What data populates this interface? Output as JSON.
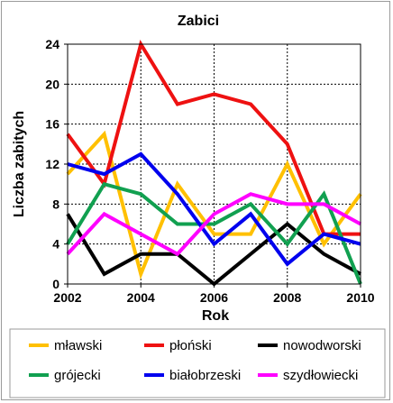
{
  "chart_data": {
    "type": "line",
    "title": "Zabici",
    "xlabel": "Rok",
    "ylabel": "Liczba zabitych",
    "x": [
      2002,
      2003,
      2004,
      2005,
      2006,
      2007,
      2008,
      2009,
      2010
    ],
    "xlim": [
      2002,
      2010
    ],
    "ylim": [
      0,
      24
    ],
    "xticks": [
      "2002",
      "2004",
      "2006",
      "2008",
      "2010"
    ],
    "yticks": [
      "0",
      "4",
      "8",
      "12",
      "16",
      "20",
      "24"
    ],
    "grid": true,
    "legend_position": "bottom",
    "series": [
      {
        "name": "mławski",
        "color": "#FFC000",
        "values": [
          11,
          15,
          1,
          10,
          5,
          5,
          12,
          4,
          9
        ]
      },
      {
        "name": "płoński",
        "color": "#EE1111",
        "values": [
          15,
          10,
          24,
          18,
          19,
          18,
          14,
          5,
          5
        ]
      },
      {
        "name": "nowodworski",
        "color": "#000000",
        "values": [
          7,
          1,
          3,
          3,
          0,
          3,
          6,
          3,
          1
        ]
      },
      {
        "name": "grójecki",
        "color": "#11A050",
        "values": [
          4,
          10,
          9,
          6,
          6,
          8,
          4,
          9,
          0
        ]
      },
      {
        "name": "białobrzeski",
        "color": "#0000EE",
        "values": [
          12,
          11,
          13,
          9,
          4,
          7,
          2,
          5,
          4
        ]
      },
      {
        "name": "szydłowiecki",
        "color": "#FF00FF",
        "values": [
          3,
          7,
          5,
          3,
          7,
          9,
          8,
          8,
          6
        ]
      }
    ]
  }
}
